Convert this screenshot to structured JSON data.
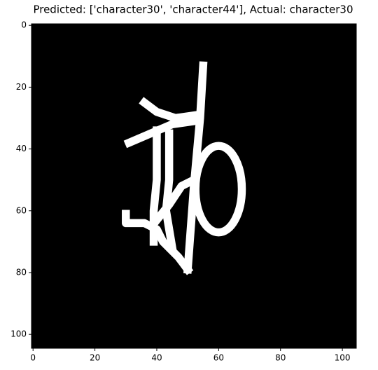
{
  "chart_data": {
    "type": "image",
    "title": "Predicted: ['character30', 'character44'], Actual: character30",
    "xlim": [
      -0.5,
      104.5
    ],
    "ylim": [
      104.5,
      -0.5
    ],
    "xticks": [
      0,
      20,
      40,
      60,
      80,
      100
    ],
    "yticks": [
      0,
      20,
      40,
      60,
      80,
      100
    ]
  }
}
